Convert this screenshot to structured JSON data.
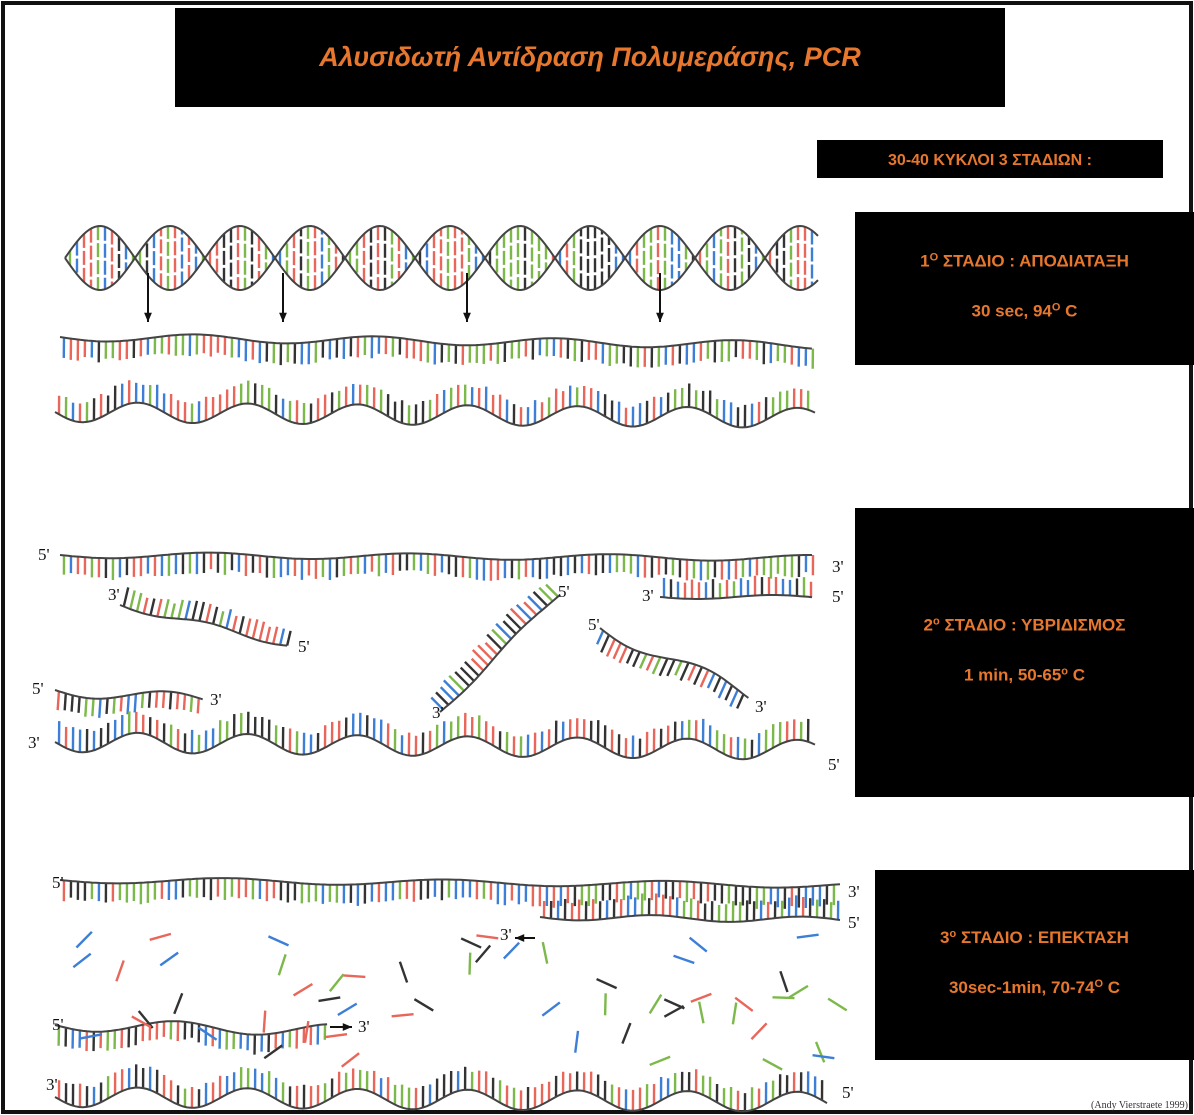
{
  "header": {
    "title": "Αλυσιδωτή Αντίδραση Πολυμεράσης, PCR"
  },
  "cycles": "30-40 ΚΥΚΛΟΙ 3 ΣΤΑΔΙΩΝ :",
  "stages": [
    {
      "heading": [
        "1",
        "O",
        " ΣΤΑΔΙΟ : ΑΠΟΔΙΑΤΑΞΗ"
      ],
      "conditions": [
        "30 sec,  94",
        "O",
        " C"
      ]
    },
    {
      "heading": [
        "2",
        "o",
        " ΣΤΑΔΙΟ : ΥΒΡΙΔΙΣΜΟΣ"
      ],
      "conditions": [
        "1 min,  50-65",
        "o",
        "  C"
      ]
    },
    {
      "heading": [
        "3",
        "o",
        " ΣΤΑΔΙΟ : ΕΠΕΚΤΑΣΗ"
      ],
      "conditions": [
        "30sec-1min,  70-74",
        "O",
        " C"
      ]
    }
  ],
  "strand_labels": [
    "5'",
    "3'",
    "5'",
    "3'",
    "3'",
    "5'",
    "5'",
    "3'",
    "5'",
    "3'",
    "5'",
    "3'",
    "3'",
    "5'",
    "5'",
    "3'",
    "5'",
    "3'",
    "5'",
    "3'",
    "3'",
    "5'"
  ],
  "credit": "(Andy Vierstraete 1999)"
}
